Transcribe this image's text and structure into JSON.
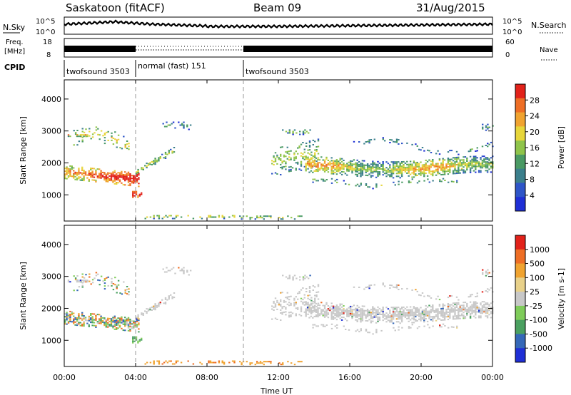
{
  "header": {
    "site": "Saskatoon (fitACF)",
    "beam": "Beam 09",
    "date": "31/Aug/2015"
  },
  "left_labels": {
    "nsky": "N.Sky",
    "freq_line1": "Freq.",
    "freq_line2": "[MHz]",
    "cpid": "CPID"
  },
  "right_labels": {
    "nsearch": "N.Search",
    "nave": "Nave"
  },
  "nsky_axis": {
    "top": "10^5",
    "bottom": "10^0"
  },
  "freq_axis": {
    "top": "18",
    "bottom": "8"
  },
  "nave_axis": {
    "top": "60",
    "bottom": "0"
  },
  "cpid_segments": [
    {
      "label": "twofsound 3503",
      "start_hour": 0
    },
    {
      "label": "normal (fast) 151",
      "start_hour": 4
    },
    {
      "label": "twofsound 3503",
      "start_hour": 10
    }
  ],
  "colors": {
    "power": [
      "#1f2fd6",
      "#2e55c8",
      "#3b7f8c",
      "#4a9a64",
      "#8fc44a",
      "#e7d63a",
      "#f0a330",
      "#ee6e25",
      "#e2221a"
    ],
    "velocity": [
      "#e2221a",
      "#ee6e25",
      "#f0a330",
      "#e8d18a",
      "#c8c8c8",
      "#7fcc5a",
      "#4aa060",
      "#3568b8",
      "#1f2fd6"
    ]
  },
  "chart_data": [
    {
      "type": "heatmap",
      "name": "power",
      "xlabel": "",
      "ylabel": "Slant Range [km]",
      "x_ticks": [
        "00:00",
        "04:00",
        "08:00",
        "12:00",
        "16:00",
        "20:00",
        "00:00"
      ],
      "xlim_hours": [
        0,
        24
      ],
      "y_ticks": [
        1000,
        2000,
        3000,
        4000
      ],
      "ylim_km": [
        180,
        4600
      ],
      "colorbar": {
        "label": "Power [dB]",
        "ticks": [
          4,
          8,
          12,
          16,
          20,
          24,
          28
        ],
        "range": [
          0,
          30
        ]
      }
    },
    {
      "type": "heatmap",
      "name": "velocity",
      "xlabel": "Time UT",
      "ylabel": "Slant Range [km]",
      "x_ticks": [
        "00:00",
        "04:00",
        "08:00",
        "12:00",
        "16:00",
        "20:00",
        "00:00"
      ],
      "xlim_hours": [
        0,
        24
      ],
      "y_ticks": [
        1000,
        2000,
        3000,
        4000
      ],
      "ylim_km": [
        180,
        4600
      ],
      "colorbar": {
        "label": "Velocity [m s-1]",
        "ticks": [
          1000,
          500,
          100,
          25,
          -25,
          -100,
          -500,
          -1000
        ]
      }
    }
  ]
}
